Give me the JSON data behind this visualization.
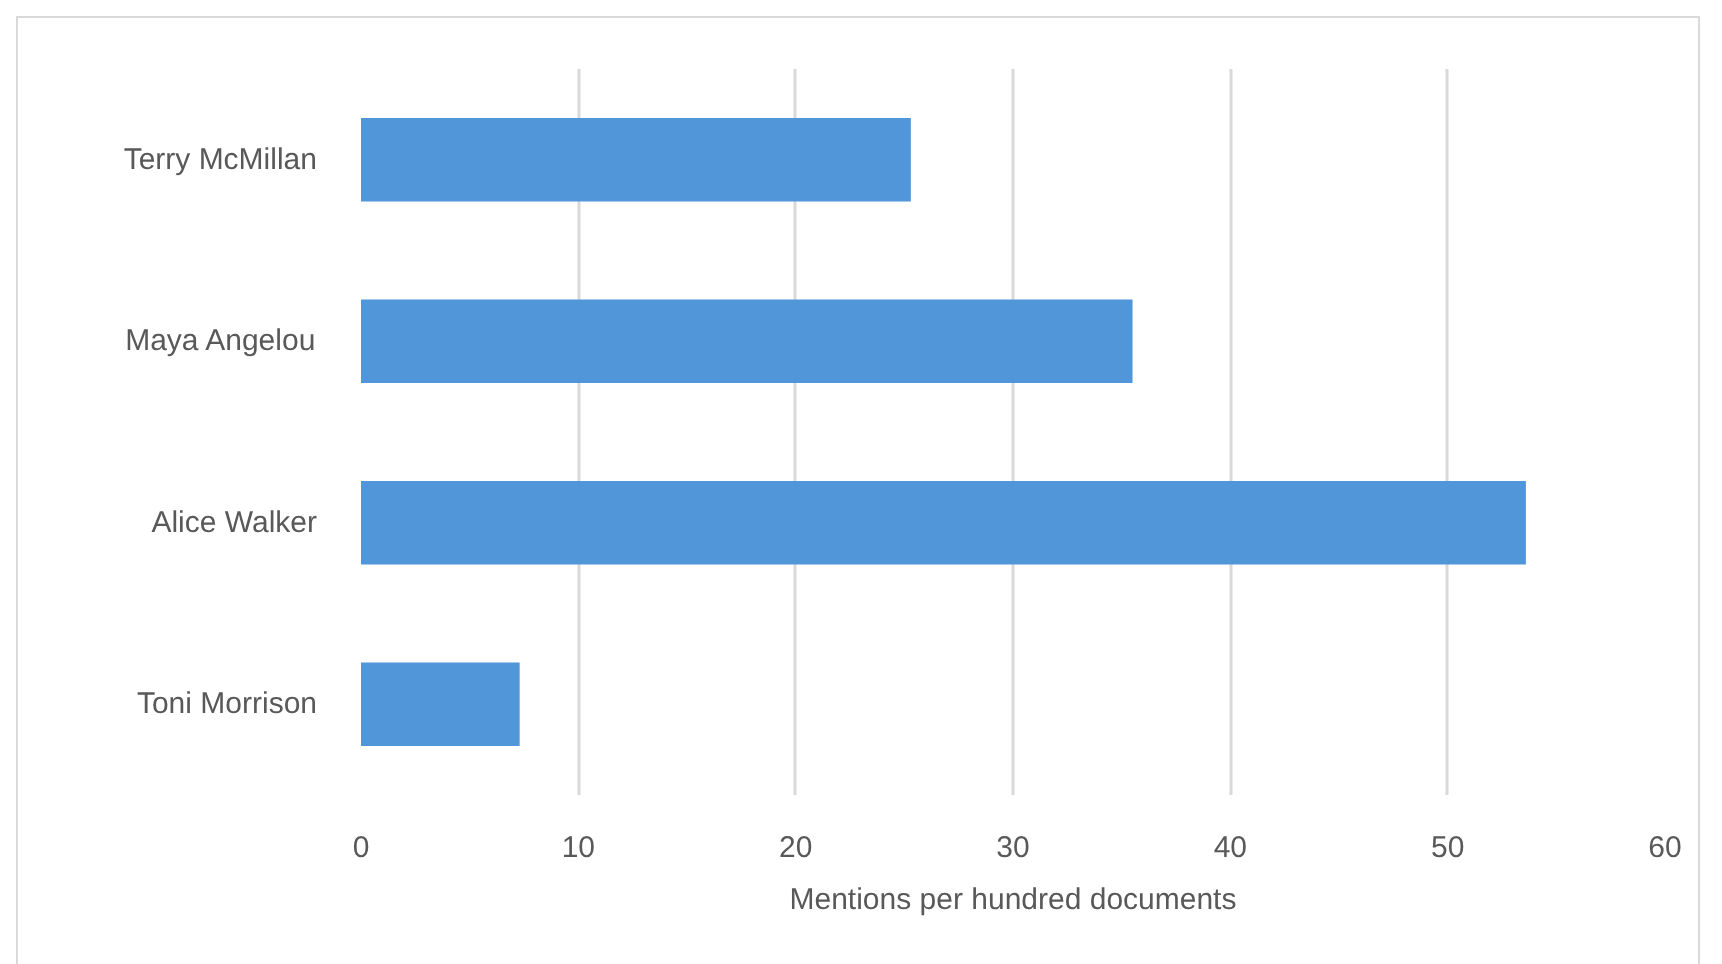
{
  "chart_data": {
    "type": "bar",
    "orientation": "horizontal",
    "categories": [
      "Terry McMillan",
      "Maya Angelou",
      "Alice Walker",
      "Toni Morrison"
    ],
    "values": [
      25.3,
      35.5,
      53.6,
      7.3
    ],
    "color": "#5096d8",
    "xlabel": "Mentions per hundred documents",
    "xlim": [
      0,
      60
    ],
    "xticks": [
      0,
      10,
      20,
      30,
      40,
      50,
      60
    ],
    "grid": "x"
  }
}
